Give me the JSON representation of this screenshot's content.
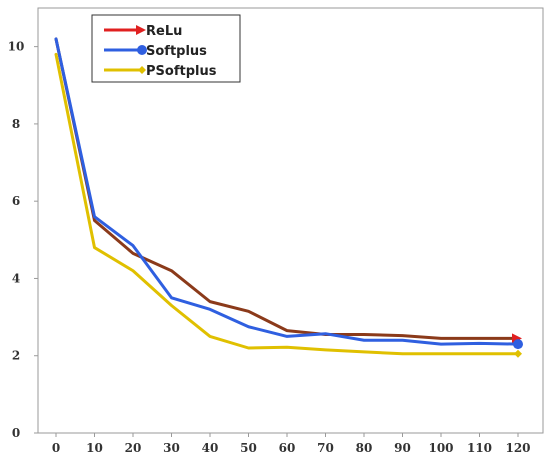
{
  "chart_data": {
    "type": "line",
    "x": [
      0,
      10,
      20,
      30,
      40,
      50,
      60,
      70,
      80,
      90,
      100,
      110,
      120
    ],
    "xticks": [
      "0",
      "10",
      "20",
      "30",
      "40",
      "50",
      "60",
      "70",
      "80",
      "90",
      "100",
      "110",
      "120"
    ],
    "yticks": [
      "0",
      "2",
      "4",
      "6",
      "8",
      "10"
    ],
    "xlim": [
      0,
      120
    ],
    "ylim": [
      0,
      11
    ],
    "grid": false,
    "legend_position": "top-left",
    "series": [
      {
        "name": "ReLu",
        "color": "#8b3a1a",
        "legend_color": "#e02020",
        "marker": "arrow",
        "values": [
          10.2,
          5.5,
          4.65,
          4.2,
          3.4,
          3.15,
          2.65,
          2.55,
          2.55,
          2.52,
          2.45,
          2.45,
          2.45
        ]
      },
      {
        "name": "Softplus",
        "color": "#2f5fe0",
        "legend_color": "#2f5fe0",
        "marker": "circle",
        "values": [
          10.2,
          5.6,
          4.85,
          3.5,
          3.2,
          2.75,
          2.5,
          2.57,
          2.4,
          2.4,
          2.3,
          2.32,
          2.3
        ]
      },
      {
        "name": "PSoftplus",
        "color": "#e0c000",
        "legend_color": "#e0c000",
        "marker": "diamond",
        "values": [
          9.8,
          4.8,
          4.2,
          3.3,
          2.5,
          2.2,
          2.22,
          2.15,
          2.1,
          2.05,
          2.05,
          2.05,
          2.05
        ]
      }
    ]
  }
}
